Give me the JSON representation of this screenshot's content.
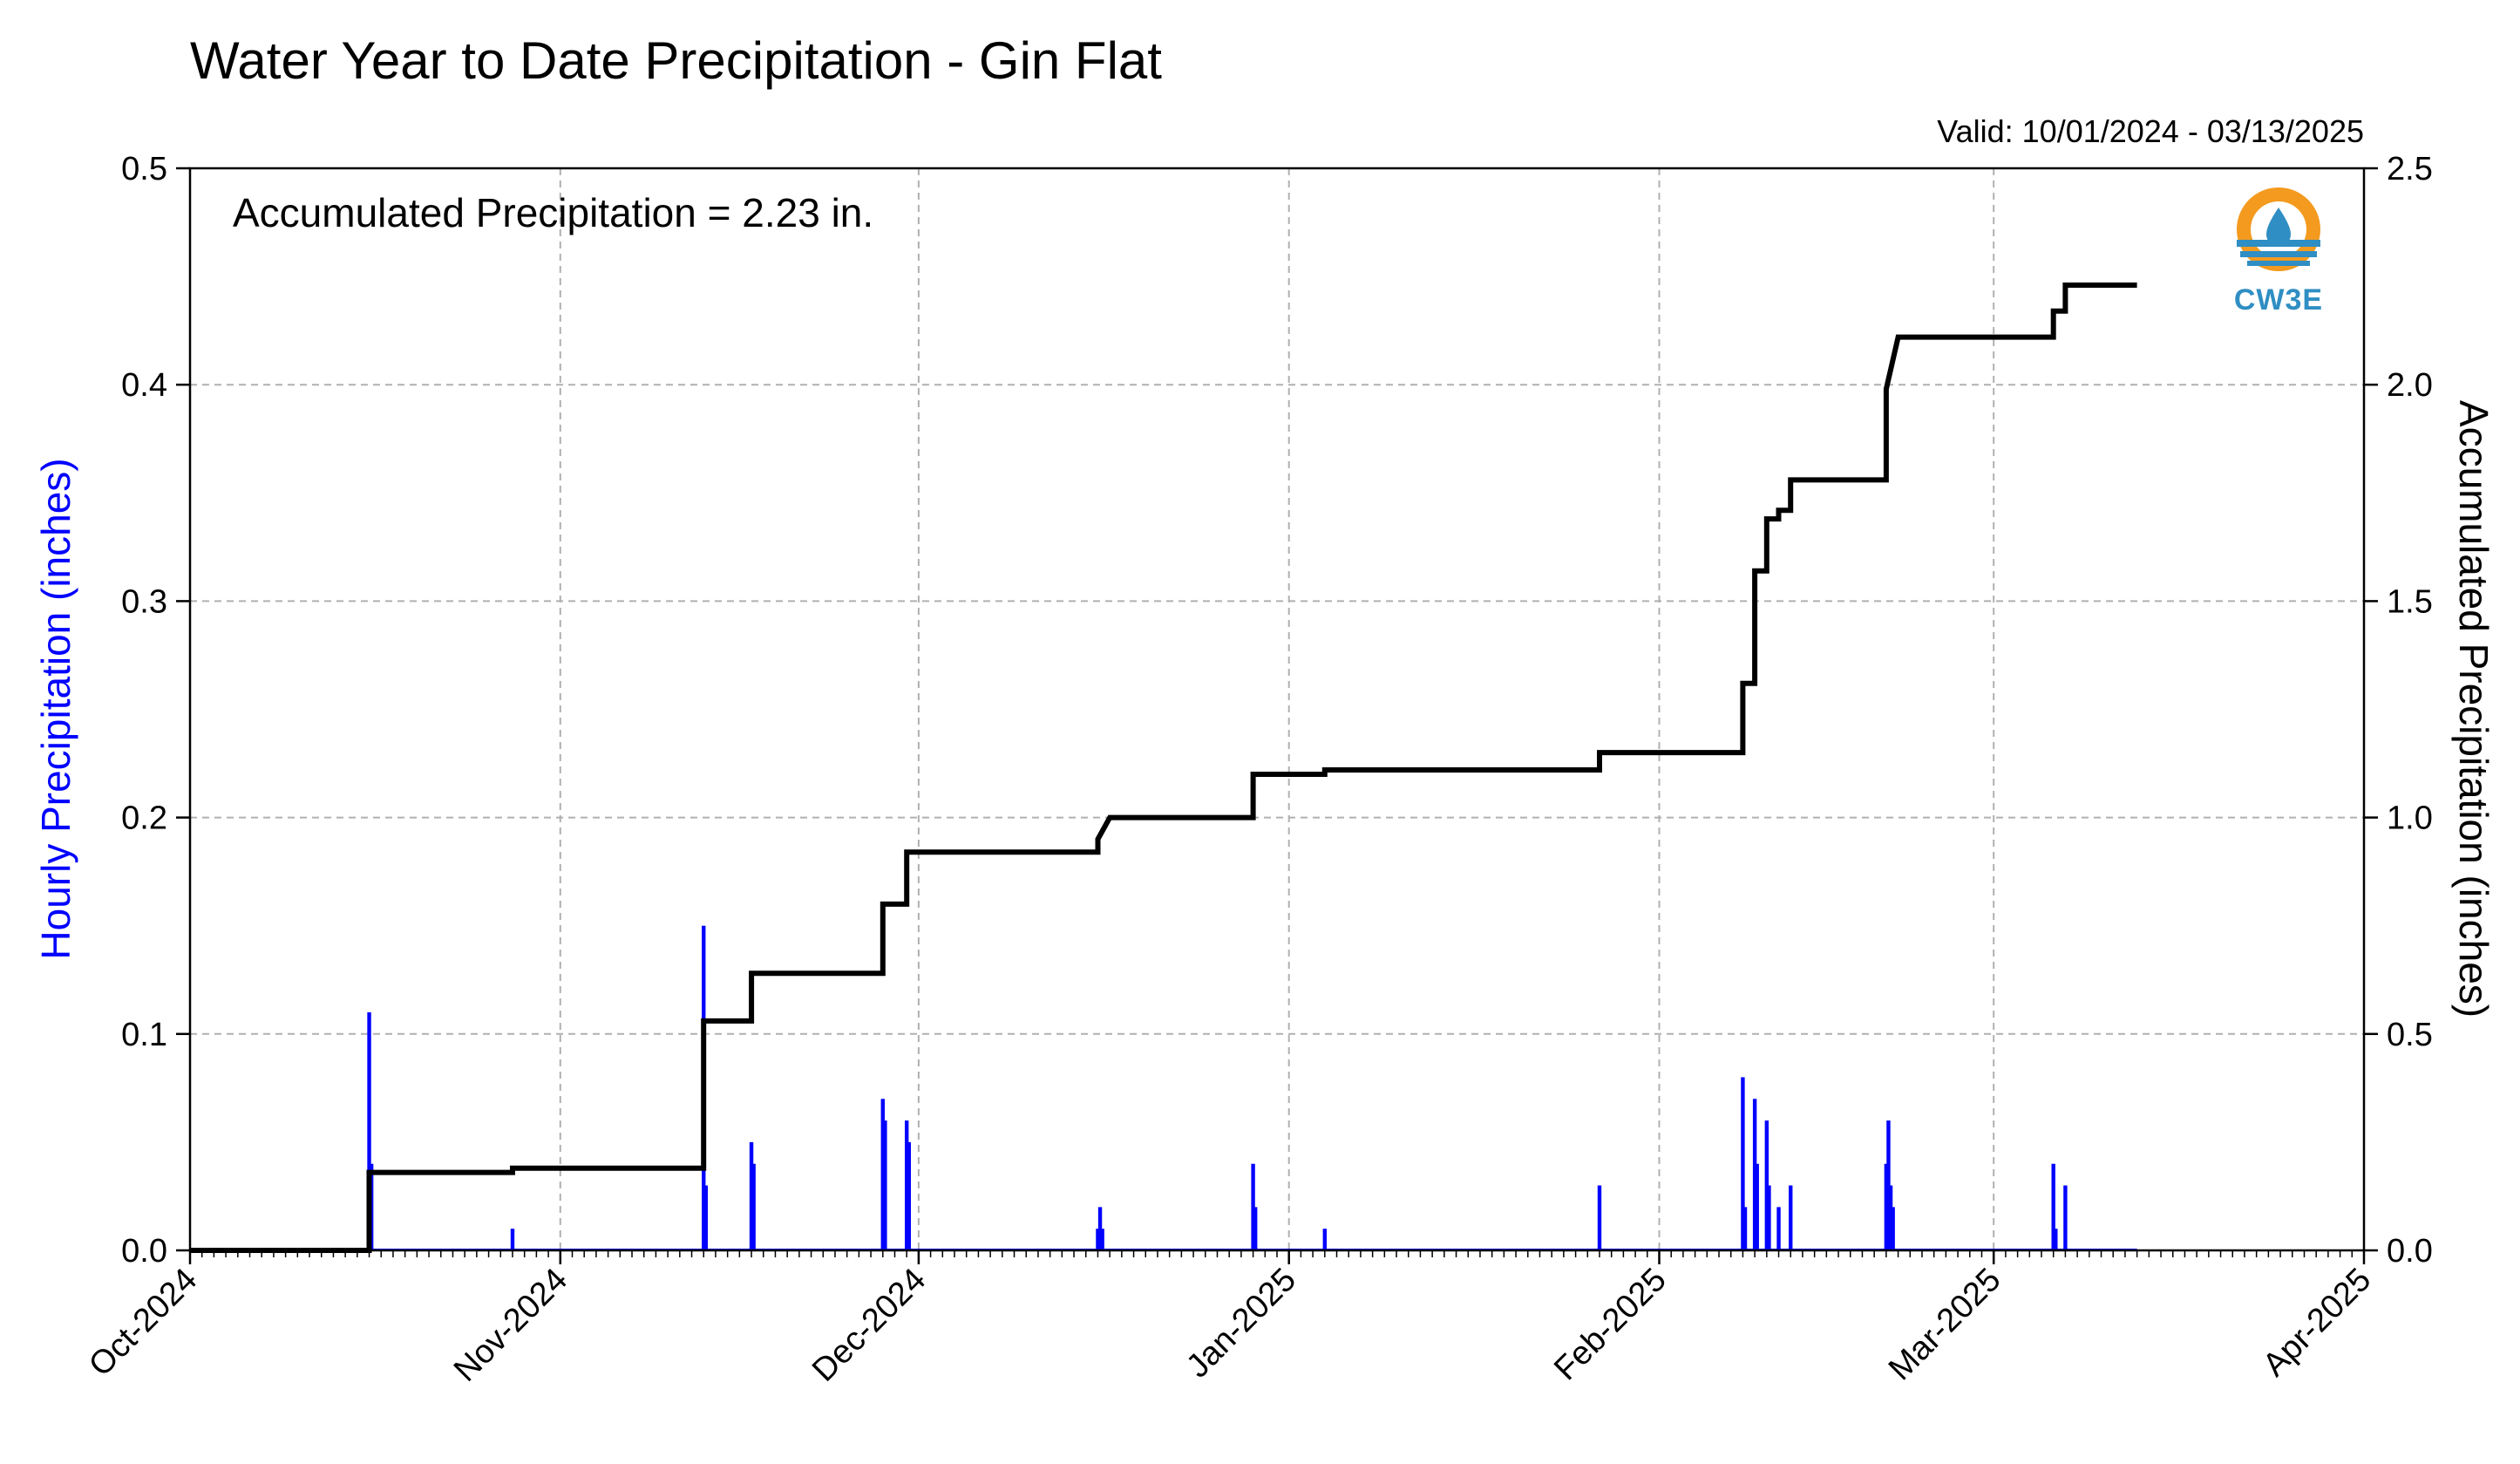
{
  "chart_data": {
    "type": "bar+line",
    "title": "Water Year to Date Precipitation - Gin Flat",
    "subtitle": "Valid: 10/01/2024 - 03/13/2025",
    "annotation": "Accumulated Precipitation = 2.23 in.",
    "logo_text": "CW3E",
    "ylabel_left": "Hourly Precipitation (inches)",
    "ylabel_right": "Accumulated Precipitation (inches)",
    "ylim_left": [
      0,
      0.5
    ],
    "ylim_right": [
      0,
      2.5
    ],
    "yticks_left": [
      "0.0",
      "0.1",
      "0.2",
      "0.3",
      "0.4",
      "0.5"
    ],
    "yticks_right": [
      "0.0",
      "0.5",
      "1.0",
      "1.5",
      "2.0",
      "2.5"
    ],
    "xlim": [
      "2024-10-01",
      "2025-04-01"
    ],
    "xtick_labels": [
      "Oct-2024",
      "Nov-2024",
      "Dec-2024",
      "Jan-2025",
      "Feb-2025",
      "Mar-2025",
      "Apr-2025"
    ],
    "grid": true,
    "colors": {
      "hourly": "#0000ff",
      "accumulated": "#000000",
      "grid": "#b0b0b0"
    },
    "series": [
      {
        "name": "Hourly Precipitation",
        "kind": "bar",
        "axis": "left",
        "points": [
          [
            "2024-10-16",
            0.11
          ],
          [
            "2024-10-16",
            0.04
          ],
          [
            "2024-10-28",
            0.01
          ],
          [
            "2024-11-13",
            0.15
          ],
          [
            "2024-11-13",
            0.03
          ],
          [
            "2024-11-17",
            0.05
          ],
          [
            "2024-11-17",
            0.04
          ],
          [
            "2024-11-28",
            0.07
          ],
          [
            "2024-11-28",
            0.06
          ],
          [
            "2024-11-30",
            0.06
          ],
          [
            "2024-11-30",
            0.05
          ],
          [
            "2024-12-16",
            0.01
          ],
          [
            "2024-12-16",
            0.02
          ],
          [
            "2024-12-16",
            0.01
          ],
          [
            "2024-12-29",
            0.04
          ],
          [
            "2024-12-29",
            0.02
          ],
          [
            "2025-01-04",
            0.01
          ],
          [
            "2025-01-27",
            0.03
          ],
          [
            "2025-02-08",
            0.08
          ],
          [
            "2025-02-08",
            0.02
          ],
          [
            "2025-02-09",
            0.07
          ],
          [
            "2025-02-09",
            0.04
          ],
          [
            "2025-02-10",
            0.06
          ],
          [
            "2025-02-10",
            0.03
          ],
          [
            "2025-02-11",
            0.02
          ],
          [
            "2025-02-12",
            0.03
          ],
          [
            "2025-02-20",
            0.04
          ],
          [
            "2025-02-20",
            0.06
          ],
          [
            "2025-02-20",
            0.03
          ],
          [
            "2025-02-20",
            0.02
          ],
          [
            "2025-03-06",
            0.04
          ],
          [
            "2025-03-06",
            0.01
          ],
          [
            "2025-03-07",
            0.03
          ]
        ]
      },
      {
        "name": "Accumulated Precipitation",
        "kind": "step",
        "axis": "right",
        "points": [
          [
            "2024-10-01",
            0.0
          ],
          [
            "2024-10-16",
            0.0
          ],
          [
            "2024-10-16",
            0.15
          ],
          [
            "2024-10-16",
            0.18
          ],
          [
            "2024-10-28",
            0.18
          ],
          [
            "2024-10-28",
            0.19
          ],
          [
            "2024-11-13",
            0.19
          ],
          [
            "2024-11-13",
            0.49
          ],
          [
            "2024-11-13",
            0.53
          ],
          [
            "2024-11-17",
            0.53
          ],
          [
            "2024-11-17",
            0.58
          ],
          [
            "2024-11-17",
            0.64
          ],
          [
            "2024-11-28",
            0.64
          ],
          [
            "2024-11-28",
            0.74
          ],
          [
            "2024-11-28",
            0.8
          ],
          [
            "2024-11-30",
            0.8
          ],
          [
            "2024-11-30",
            0.86
          ],
          [
            "2024-11-30",
            0.92
          ],
          [
            "2024-12-16",
            0.92
          ],
          [
            "2024-12-16",
            0.93
          ],
          [
            "2024-12-16",
            0.95
          ],
          [
            "2024-12-17",
            1.0
          ],
          [
            "2024-12-29",
            1.0
          ],
          [
            "2024-12-29",
            1.04
          ],
          [
            "2024-12-29",
            1.1
          ],
          [
            "2025-01-04",
            1.1
          ],
          [
            "2025-01-04",
            1.11
          ],
          [
            "2025-01-27",
            1.11
          ],
          [
            "2025-01-27",
            1.15
          ],
          [
            "2025-02-08",
            1.15
          ],
          [
            "2025-02-08",
            1.23
          ],
          [
            "2025-02-08",
            1.31
          ],
          [
            "2025-02-09",
            1.31
          ],
          [
            "2025-02-09",
            1.5
          ],
          [
            "2025-02-09",
            1.57
          ],
          [
            "2025-02-10",
            1.57
          ],
          [
            "2025-02-10",
            1.63
          ],
          [
            "2025-02-10",
            1.69
          ],
          [
            "2025-02-11",
            1.69
          ],
          [
            "2025-02-11",
            1.71
          ],
          [
            "2025-02-12",
            1.71
          ],
          [
            "2025-02-12",
            1.78
          ],
          [
            "2025-02-20",
            1.78
          ],
          [
            "2025-02-20",
            1.9
          ],
          [
            "2025-02-20",
            1.99
          ],
          [
            "2025-02-21",
            2.11
          ],
          [
            "2025-03-06",
            2.11
          ],
          [
            "2025-03-06",
            2.15
          ],
          [
            "2025-03-06",
            2.17
          ],
          [
            "2025-03-07",
            2.17
          ],
          [
            "2025-03-07",
            2.23
          ],
          [
            "2025-03-13",
            2.23
          ]
        ]
      }
    ]
  }
}
